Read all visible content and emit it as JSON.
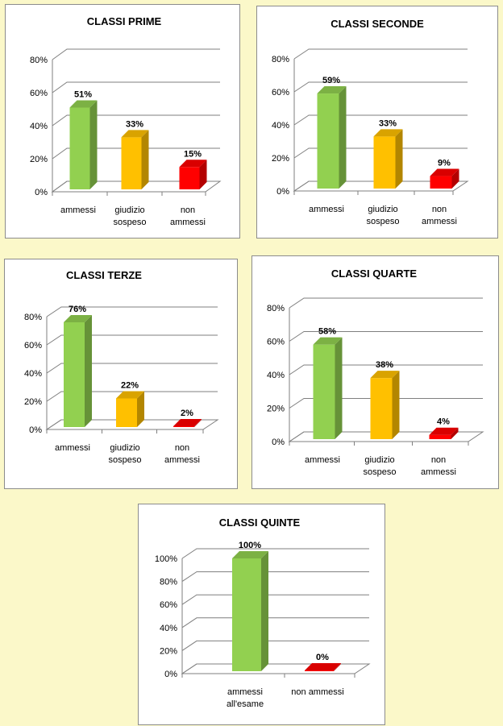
{
  "chart_data": [
    {
      "type": "bar",
      "title": "CLASSI PRIME",
      "categories": [
        [
          "ammessi"
        ],
        [
          "giudizio",
          "sospeso"
        ],
        [
          "non",
          "ammessi"
        ]
      ],
      "values": [
        51,
        33,
        15
      ],
      "value_labels": [
        "51%",
        "33%",
        "15%"
      ],
      "colors": [
        "#92d050",
        "#ffc000",
        "#ff0000"
      ],
      "ylim": [
        0,
        80
      ],
      "yticks": [
        "0%",
        "20%",
        "40%",
        "60%",
        "80%"
      ],
      "grid": true
    },
    {
      "type": "bar",
      "title": "CLASSI SECONDE",
      "categories": [
        [
          "ammessi"
        ],
        [
          "giudizio",
          "sospeso"
        ],
        [
          "non",
          "ammessi"
        ]
      ],
      "values": [
        59,
        33,
        9
      ],
      "value_labels": [
        "59%",
        "33%",
        "9%"
      ],
      "colors": [
        "#92d050",
        "#ffc000",
        "#ff0000"
      ],
      "ylim": [
        0,
        80
      ],
      "yticks": [
        "0%",
        "20%",
        "40%",
        "60%",
        "80%"
      ],
      "grid": true
    },
    {
      "type": "bar",
      "title": "CLASSI TERZE",
      "categories": [
        [
          "ammessi"
        ],
        [
          "giudizio",
          "sospeso"
        ],
        [
          "non",
          "ammessi"
        ]
      ],
      "values": [
        76,
        22,
        2
      ],
      "value_labels": [
        "76%",
        "22%",
        "2%"
      ],
      "colors": [
        "#92d050",
        "#ffc000",
        "#ff0000"
      ],
      "ylim": [
        0,
        80
      ],
      "yticks": [
        "0%",
        "20%",
        "40%",
        "60%",
        "80%"
      ],
      "grid": true
    },
    {
      "type": "bar",
      "title": "CLASSI QUARTE",
      "categories": [
        [
          "ammessi"
        ],
        [
          "giudizio",
          "sospeso"
        ],
        [
          "non",
          "ammessi"
        ]
      ],
      "values": [
        58,
        38,
        4
      ],
      "value_labels": [
        "58%",
        "38%",
        "4%"
      ],
      "colors": [
        "#92d050",
        "#ffc000",
        "#ff0000"
      ],
      "ylim": [
        0,
        80
      ],
      "yticks": [
        "0%",
        "20%",
        "40%",
        "60%",
        "80%"
      ],
      "grid": true
    },
    {
      "type": "bar",
      "title": "CLASSI QUINTE",
      "categories": [
        [
          "ammessi",
          "all'esame"
        ],
        [
          "non ammessi"
        ]
      ],
      "values": [
        100,
        0
      ],
      "value_labels": [
        "100%",
        "0%"
      ],
      "colors": [
        "#92d050",
        "#ff0000"
      ],
      "ylim": [
        0,
        100
      ],
      "yticks": [
        "0%",
        "20%",
        "40%",
        "60%",
        "80%",
        "100%"
      ],
      "grid": true
    }
  ]
}
